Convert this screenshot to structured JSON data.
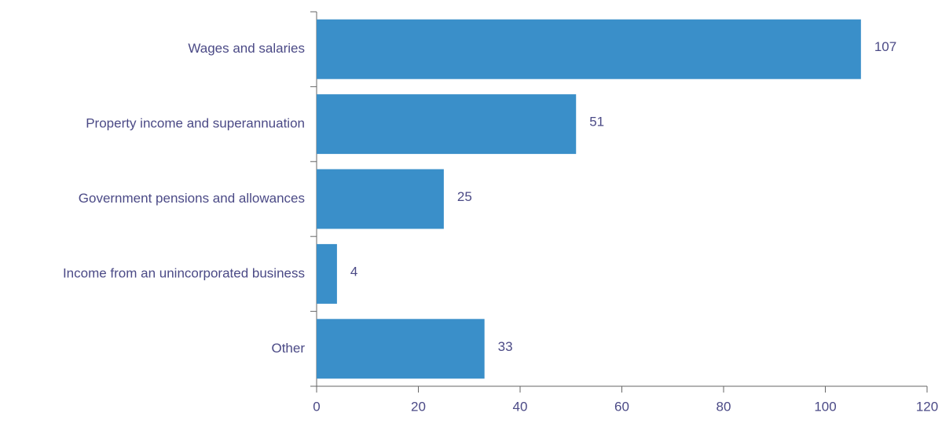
{
  "chart_data": {
    "type": "bar",
    "orientation": "horizontal",
    "categories": [
      "Wages and salaries",
      "Property income and superannuation",
      "Government pensions and allowances",
      "Income from an unincorporated business",
      "Other"
    ],
    "values": [
      107,
      51,
      25,
      4,
      33
    ],
    "color": "#3a8fc9",
    "xlim": [
      0,
      120
    ],
    "xticks": [
      0,
      20,
      40,
      60,
      80,
      100,
      120
    ],
    "grid": false
  }
}
